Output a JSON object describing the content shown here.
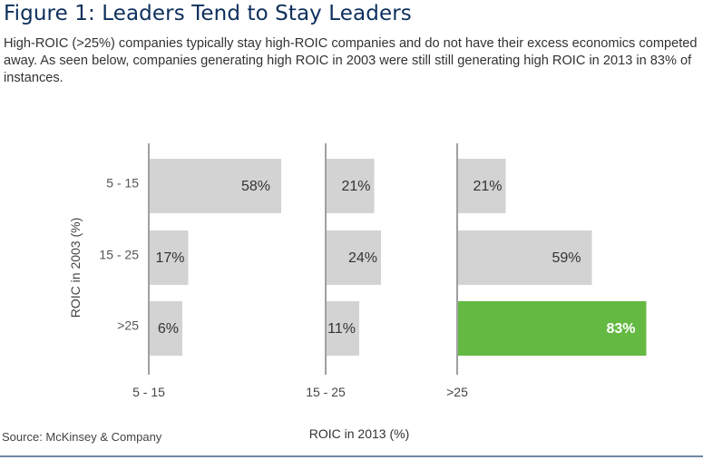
{
  "title": "Figure 1: Leaders Tend to Stay Leaders",
  "subtitle": "High-ROIC (>25%) companies typically stay high-ROIC companies and do not have their excess economics competed away.  As seen below, companies generating high ROIC in 2003 were still still generating high ROIC in 2013 in 83% of instances.",
  "source": "Source: McKinsey & Company",
  "colors": {
    "bar": "#d3d3d4",
    "highlight": "#64b943",
    "axis": "#6d6d6d",
    "title": "#0d2f5c",
    "label": "#333333"
  },
  "chart_data": {
    "type": "bar",
    "orientation": "horizontal-small-multiples",
    "title": "Figure 1: Leaders Tend to Stay Leaders",
    "xlabel": "ROIC in 2013 (%)",
    "ylabel": "ROIC in 2003 (%)",
    "row_categories": [
      "5 - 15",
      "15 - 25",
      ">25"
    ],
    "panels": [
      {
        "name": "5 - 15",
        "values": [
          58,
          17,
          6
        ],
        "labels": [
          "58%",
          "17%",
          "6%"
        ]
      },
      {
        "name": "15 - 25",
        "values": [
          21,
          24,
          11
        ],
        "labels": [
          "21%",
          "24%",
          "11%"
        ]
      },
      {
        "name": ">25",
        "values": [
          21,
          59,
          83
        ],
        "labels": [
          "21%",
          "59%",
          "83%"
        ]
      }
    ],
    "highlight": {
      "panel": 2,
      "row": 2
    },
    "value_unit": "%",
    "grid": false,
    "legend": "none"
  }
}
